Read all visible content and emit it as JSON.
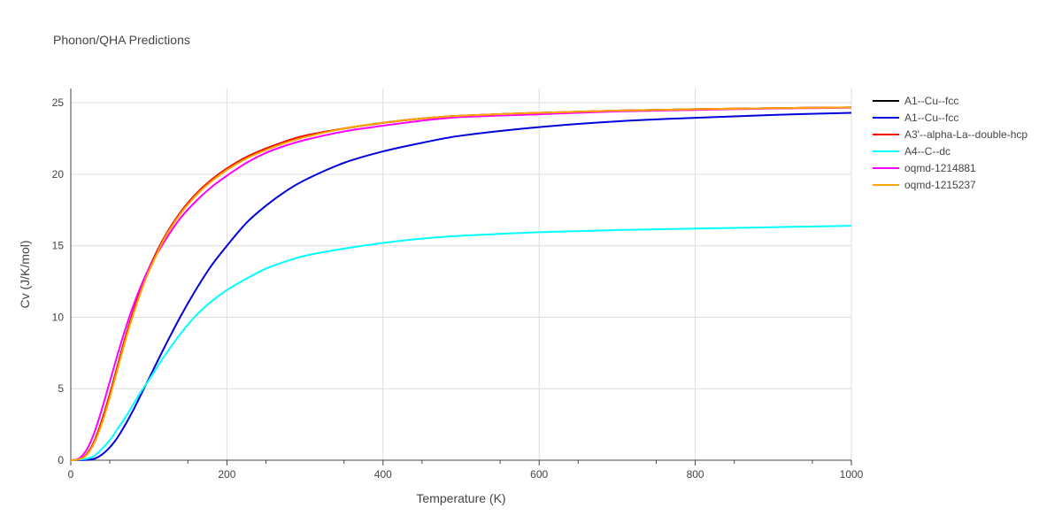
{
  "chart_data": {
    "type": "line",
    "title": "Phonon/QHA Predictions",
    "xlabel": "Temperature (K)",
    "ylabel": "Cv (J/K/mol)",
    "xlim": [
      0,
      1000
    ],
    "ylim": [
      0,
      26
    ],
    "xticks": [
      0,
      200,
      400,
      600,
      800,
      1000
    ],
    "yticks": [
      0,
      5,
      10,
      15,
      20,
      25
    ],
    "grid": true,
    "legend_position": "top-right",
    "series": [
      {
        "name": "A1--Cu--fcc",
        "color": "#000000",
        "x": [
          0,
          10,
          20,
          30,
          40,
          50,
          60,
          70,
          80,
          90,
          100,
          120,
          140,
          160,
          180,
          200,
          225,
          250,
          275,
          300,
          350,
          400,
          450,
          500,
          600,
          700,
          800,
          900,
          1000
        ],
        "y": [
          0,
          0.05,
          0.4,
          1.3,
          2.8,
          4.6,
          6.6,
          8.6,
          10.4,
          12.0,
          13.4,
          15.6,
          17.3,
          18.6,
          19.6,
          20.4,
          21.2,
          21.8,
          22.3,
          22.7,
          23.2,
          23.6,
          23.9,
          24.1,
          24.3,
          24.45,
          24.55,
          24.62,
          24.68
        ]
      },
      {
        "name": "A1--Cu--fcc",
        "color": "#0000dd",
        "x": [
          0,
          20,
          30,
          40,
          50,
          60,
          70,
          80,
          90,
          100,
          120,
          140,
          160,
          180,
          200,
          225,
          250,
          275,
          300,
          350,
          400,
          450,
          500,
          600,
          700,
          800,
          900,
          1000
        ],
        "y": [
          0,
          0.02,
          0.1,
          0.4,
          0.9,
          1.6,
          2.5,
          3.5,
          4.6,
          5.7,
          7.9,
          10.0,
          11.9,
          13.6,
          15.0,
          16.6,
          17.8,
          18.8,
          19.6,
          20.8,
          21.6,
          22.2,
          22.7,
          23.3,
          23.7,
          23.95,
          24.15,
          24.3
        ]
      },
      {
        "name": "A3'--alpha-La--double-hcp",
        "color": "#ff0000",
        "x": [
          0,
          10,
          20,
          30,
          40,
          50,
          60,
          70,
          80,
          90,
          100,
          120,
          140,
          160,
          180,
          200,
          225,
          250,
          275,
          300,
          350,
          400,
          450,
          500,
          600,
          700,
          800,
          900,
          1000
        ],
        "y": [
          0,
          0.05,
          0.4,
          1.3,
          2.8,
          4.6,
          6.6,
          8.6,
          10.4,
          12.0,
          13.4,
          15.6,
          17.3,
          18.6,
          19.6,
          20.4,
          21.2,
          21.8,
          22.3,
          22.7,
          23.2,
          23.6,
          23.9,
          24.1,
          24.3,
          24.45,
          24.55,
          24.62,
          24.68
        ]
      },
      {
        "name": "A4--C--dc",
        "color": "#00ffff",
        "x": [
          0,
          20,
          30,
          40,
          50,
          60,
          70,
          80,
          90,
          100,
          120,
          140,
          160,
          180,
          200,
          225,
          250,
          275,
          300,
          350,
          400,
          450,
          500,
          600,
          700,
          800,
          900,
          1000
        ],
        "y": [
          0,
          0.1,
          0.3,
          0.8,
          1.4,
          2.2,
          3.0,
          3.9,
          4.8,
          5.6,
          7.3,
          8.8,
          10.1,
          11.1,
          11.9,
          12.7,
          13.4,
          13.9,
          14.3,
          14.8,
          15.2,
          15.5,
          15.7,
          15.95,
          16.1,
          16.2,
          16.3,
          16.4
        ]
      },
      {
        "name": "oqmd-1214881",
        "color": "#ff00ff",
        "x": [
          0,
          10,
          20,
          30,
          40,
          50,
          60,
          70,
          80,
          90,
          100,
          120,
          140,
          160,
          180,
          200,
          225,
          250,
          275,
          300,
          350,
          400,
          450,
          500,
          600,
          700,
          800,
          900,
          1000
        ],
        "y": [
          0,
          0.1,
          0.7,
          1.9,
          3.6,
          5.5,
          7.4,
          9.2,
          10.8,
          12.2,
          13.4,
          15.3,
          16.9,
          18.1,
          19.1,
          19.9,
          20.8,
          21.5,
          22.0,
          22.4,
          23.0,
          23.4,
          23.75,
          24.0,
          24.2,
          24.4,
          24.5,
          24.6,
          24.65
        ]
      },
      {
        "name": "oqmd-1215237",
        "color": "#ffa500",
        "x": [
          0,
          10,
          20,
          30,
          40,
          50,
          60,
          70,
          80,
          90,
          100,
          120,
          140,
          160,
          180,
          200,
          225,
          250,
          275,
          300,
          350,
          400,
          450,
          500,
          600,
          700,
          800,
          900,
          1000
        ],
        "y": [
          0,
          0.05,
          0.35,
          1.2,
          2.6,
          4.4,
          6.4,
          8.4,
          10.2,
          11.8,
          13.2,
          15.5,
          17.2,
          18.5,
          19.5,
          20.3,
          21.1,
          21.7,
          22.2,
          22.6,
          23.2,
          23.6,
          23.9,
          24.1,
          24.3,
          24.45,
          24.55,
          24.62,
          24.68
        ]
      }
    ]
  }
}
